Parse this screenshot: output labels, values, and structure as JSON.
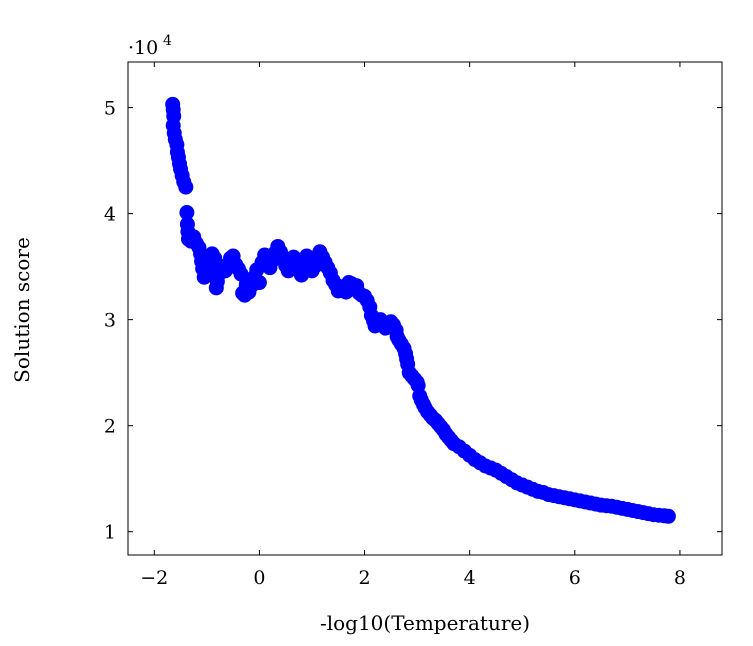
{
  "chart_data": {
    "type": "scatter",
    "title": "",
    "xlabel": "-log10(Temperature)",
    "ylabel": "Solution score",
    "xlim": [
      -2.5,
      8.8
    ],
    "ylim": [
      7800,
      54300
    ],
    "x_ticks": [
      -2,
      0,
      2,
      4,
      6,
      8
    ],
    "x_tick_labels": [
      "−2",
      "0",
      "2",
      "4",
      "6",
      "8"
    ],
    "y_ticks": [
      10000,
      20000,
      30000,
      40000,
      50000
    ],
    "y_tick_labels": [
      "1",
      "2",
      "3",
      "4",
      "5"
    ],
    "y_scale_multiplier": "·10",
    "y_scale_exponent": "4",
    "grid": false,
    "marker_color": "#0000ff",
    "series": [
      {
        "points": [
          [
            -1.65,
            50300
          ],
          [
            -1.64,
            49800
          ],
          [
            -1.63,
            49200
          ],
          [
            -1.64,
            48300
          ],
          [
            -1.62,
            47600
          ],
          [
            -1.6,
            47000
          ],
          [
            -1.57,
            46500
          ],
          [
            -1.56,
            45800
          ],
          [
            -1.54,
            45300
          ],
          [
            -1.52,
            44700
          ],
          [
            -1.5,
            44200
          ],
          [
            -1.47,
            43600
          ],
          [
            -1.44,
            43000
          ],
          [
            -1.4,
            42500
          ],
          [
            -1.38,
            40100
          ],
          [
            -1.37,
            39000
          ],
          [
            -1.36,
            38300
          ],
          [
            -1.35,
            37600
          ],
          [
            -1.3,
            37400
          ],
          [
            -1.25,
            37800
          ],
          [
            -1.2,
            37200
          ],
          [
            -1.15,
            36800
          ],
          [
            -1.12,
            36200
          ],
          [
            -1.1,
            35500
          ],
          [
            -1.08,
            34800
          ],
          [
            -1.05,
            34000
          ],
          [
            -1.0,
            34500
          ],
          [
            -0.95,
            35300
          ],
          [
            -0.9,
            36200
          ],
          [
            -0.85,
            35800
          ],
          [
            -0.82,
            33000
          ],
          [
            -0.8,
            33600
          ],
          [
            -0.75,
            34400
          ],
          [
            -0.7,
            35000
          ],
          [
            -0.65,
            34600
          ],
          [
            -0.6,
            35200
          ],
          [
            -0.55,
            35800
          ],
          [
            -0.5,
            36000
          ],
          [
            -0.45,
            35200
          ],
          [
            -0.4,
            34800
          ],
          [
            -0.35,
            34300
          ],
          [
            -0.32,
            32500
          ],
          [
            -0.28,
            32300
          ],
          [
            -0.25,
            33300
          ],
          [
            -0.2,
            32600
          ],
          [
            -0.15,
            33200
          ],
          [
            -0.1,
            34000
          ],
          [
            -0.05,
            34700
          ],
          [
            0.0,
            33500
          ],
          [
            0.05,
            35400
          ],
          [
            0.1,
            36100
          ],
          [
            0.15,
            35700
          ],
          [
            0.2,
            34900
          ],
          [
            0.25,
            35600
          ],
          [
            0.3,
            36300
          ],
          [
            0.35,
            36900
          ],
          [
            0.4,
            36400
          ],
          [
            0.45,
            35800
          ],
          [
            0.5,
            35100
          ],
          [
            0.55,
            34600
          ],
          [
            0.6,
            35400
          ],
          [
            0.65,
            35900
          ],
          [
            0.7,
            35300
          ],
          [
            0.75,
            34800
          ],
          [
            0.8,
            34200
          ],
          [
            0.85,
            35600
          ],
          [
            0.9,
            36000
          ],
          [
            0.95,
            35200
          ],
          [
            1.0,
            34600
          ],
          [
            1.05,
            35000
          ],
          [
            1.1,
            35600
          ],
          [
            1.15,
            36400
          ],
          [
            1.2,
            35900
          ],
          [
            1.25,
            35400
          ],
          [
            1.3,
            34900
          ],
          [
            1.35,
            34400
          ],
          [
            1.4,
            33700
          ],
          [
            1.45,
            33300
          ],
          [
            1.5,
            32700
          ],
          [
            1.55,
            33100
          ],
          [
            1.6,
            32800
          ],
          [
            1.65,
            32600
          ],
          [
            1.7,
            33500
          ],
          [
            1.75,
            33400
          ],
          [
            1.8,
            32900
          ],
          [
            1.85,
            33200
          ],
          [
            1.9,
            32500
          ],
          [
            1.95,
            32300
          ],
          [
            2.0,
            32200
          ],
          [
            2.05,
            31800
          ],
          [
            2.1,
            31200
          ],
          [
            2.13,
            30400
          ],
          [
            2.17,
            29900
          ],
          [
            2.2,
            29400
          ],
          [
            2.25,
            29700
          ],
          [
            2.3,
            30000
          ],
          [
            2.35,
            29600
          ],
          [
            2.4,
            29200
          ],
          [
            2.45,
            29600
          ],
          [
            2.5,
            29800
          ],
          [
            2.55,
            29500
          ],
          [
            2.6,
            29000
          ],
          [
            2.62,
            28400
          ],
          [
            2.65,
            28100
          ],
          [
            2.7,
            27700
          ],
          [
            2.75,
            27300
          ],
          [
            2.78,
            26800
          ],
          [
            2.8,
            26300
          ],
          [
            2.82,
            25800
          ],
          [
            2.85,
            25000
          ],
          [
            2.9,
            24700
          ],
          [
            2.95,
            24400
          ],
          [
            3.0,
            24100
          ],
          [
            3.02,
            23800
          ],
          [
            3.05,
            22800
          ],
          [
            3.08,
            22400
          ],
          [
            3.12,
            22000
          ],
          [
            3.15,
            21700
          ],
          [
            3.2,
            21300
          ],
          [
            3.25,
            21000
          ],
          [
            3.3,
            20700
          ],
          [
            3.35,
            20500
          ],
          [
            3.4,
            20200
          ],
          [
            3.45,
            19900
          ],
          [
            3.5,
            19600
          ],
          [
            3.55,
            19200
          ],
          [
            3.6,
            18900
          ],
          [
            3.65,
            18600
          ],
          [
            3.7,
            18300
          ],
          [
            3.8,
            18000
          ],
          [
            3.9,
            17600
          ],
          [
            4.0,
            17200
          ],
          [
            4.1,
            16800
          ],
          [
            4.2,
            16500
          ],
          [
            4.3,
            16200
          ],
          [
            4.4,
            16000
          ],
          [
            4.5,
            15800
          ],
          [
            4.6,
            15500
          ],
          [
            4.7,
            15200
          ],
          [
            4.8,
            14900
          ],
          [
            4.9,
            14600
          ],
          [
            5.0,
            14400
          ],
          [
            5.1,
            14200
          ],
          [
            5.2,
            14000
          ],
          [
            5.3,
            13800
          ],
          [
            5.4,
            13700
          ],
          [
            5.5,
            13500
          ],
          [
            5.6,
            13400
          ],
          [
            5.7,
            13300
          ],
          [
            5.8,
            13200
          ],
          [
            5.9,
            13100
          ],
          [
            6.0,
            13000
          ],
          [
            6.1,
            12900
          ],
          [
            6.2,
            12800
          ],
          [
            6.3,
            12700
          ],
          [
            6.4,
            12600
          ],
          [
            6.5,
            12500
          ],
          [
            6.6,
            12450
          ],
          [
            6.7,
            12400
          ],
          [
            6.8,
            12300
          ],
          [
            6.9,
            12200
          ],
          [
            7.0,
            12100
          ],
          [
            7.1,
            12000
          ],
          [
            7.2,
            11900
          ],
          [
            7.3,
            11800
          ],
          [
            7.4,
            11700
          ],
          [
            7.5,
            11600
          ],
          [
            7.6,
            11550
          ],
          [
            7.7,
            11500
          ],
          [
            7.78,
            11450
          ]
        ]
      }
    ]
  }
}
